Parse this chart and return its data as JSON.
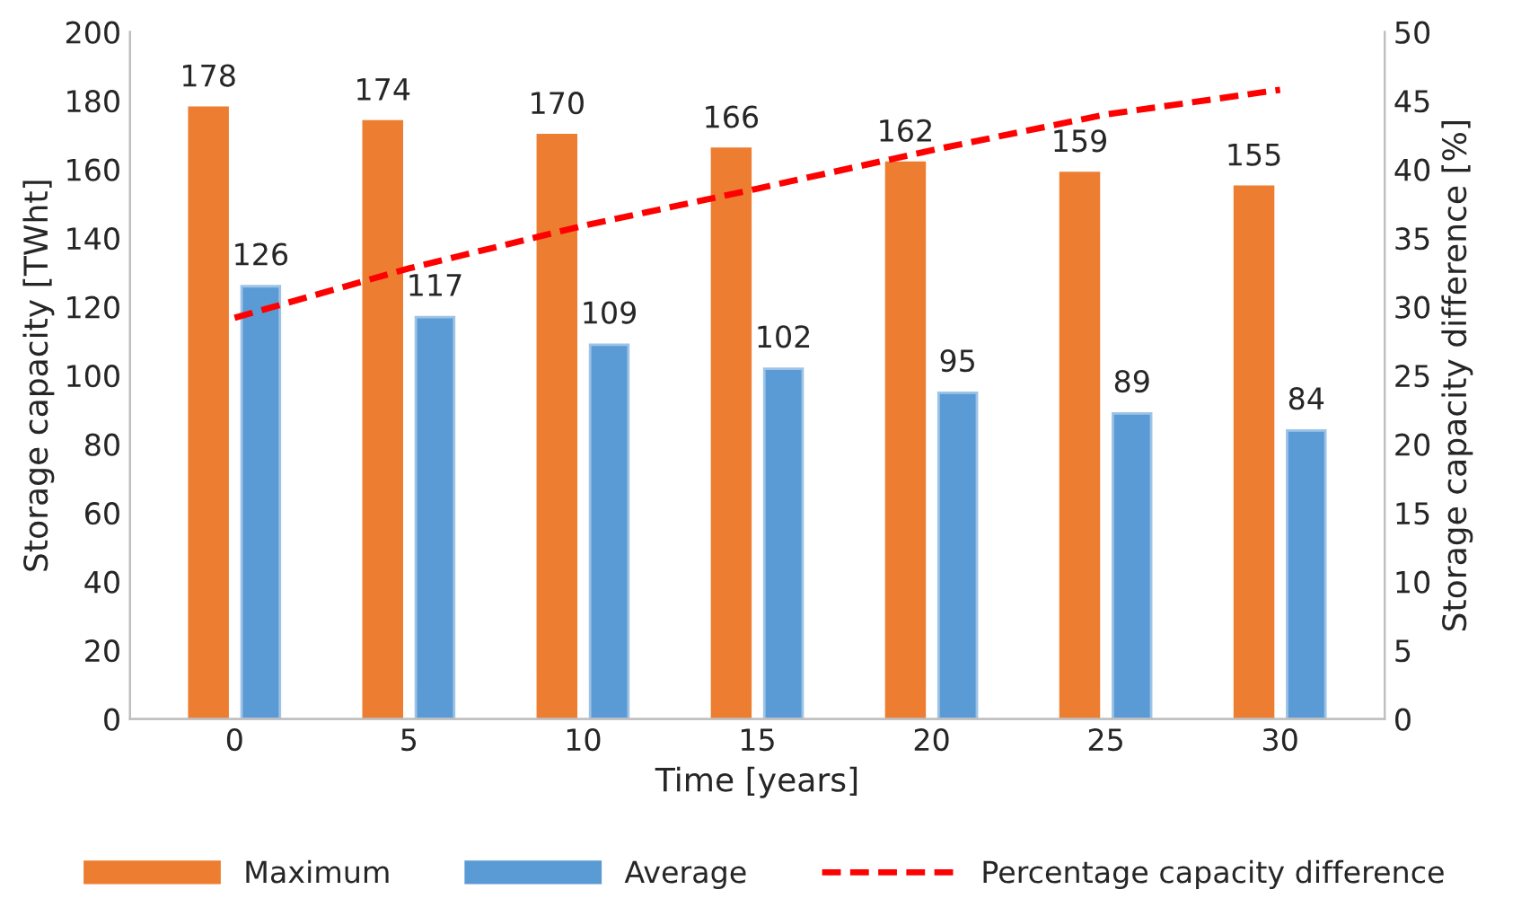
{
  "chart_data": {
    "type": "bar",
    "xlabel": "Time [years]",
    "ylabel": "Storage capacity [TWht]",
    "y2label": "Storage capacity difference [%]",
    "categories": [
      "0",
      "5",
      "10",
      "15",
      "20",
      "25",
      "30"
    ],
    "series": [
      {
        "name": "Maximum",
        "color": "#ed7d31",
        "values": [
          178,
          174,
          170,
          166,
          162,
          159,
          155
        ],
        "value_labels": [
          "178",
          "174",
          "170",
          "166",
          "162",
          "159",
          "155"
        ]
      },
      {
        "name": "Average",
        "color": "#5b9bd5",
        "values": [
          126,
          117,
          109,
          102,
          95,
          89,
          84
        ],
        "value_labels": [
          "126",
          "117",
          "109",
          "102",
          "95",
          "89",
          "84"
        ]
      },
      {
        "name": "Percentage capacity difference",
        "type": "line",
        "axis": "y2",
        "color": "#ff0000",
        "line_style": "dashed",
        "values": [
          29.2,
          32.8,
          35.9,
          38.6,
          41.4,
          44.0,
          45.8
        ]
      }
    ],
    "ylim": [
      0,
      200
    ],
    "yticks": [
      0,
      20,
      40,
      60,
      80,
      100,
      120,
      140,
      160,
      180,
      200
    ],
    "y2lim": [
      0,
      50
    ],
    "y2ticks": [
      0,
      5,
      10,
      15,
      20,
      25,
      30,
      35,
      40,
      45,
      50
    ],
    "legend": "bottom",
    "grid": false
  }
}
